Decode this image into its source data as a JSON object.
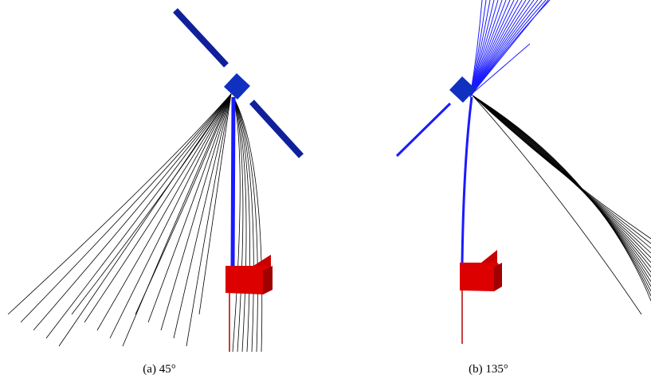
{
  "figures": [
    {
      "caption": "(a) 45°"
    },
    {
      "caption": "(b) 135°"
    }
  ]
}
